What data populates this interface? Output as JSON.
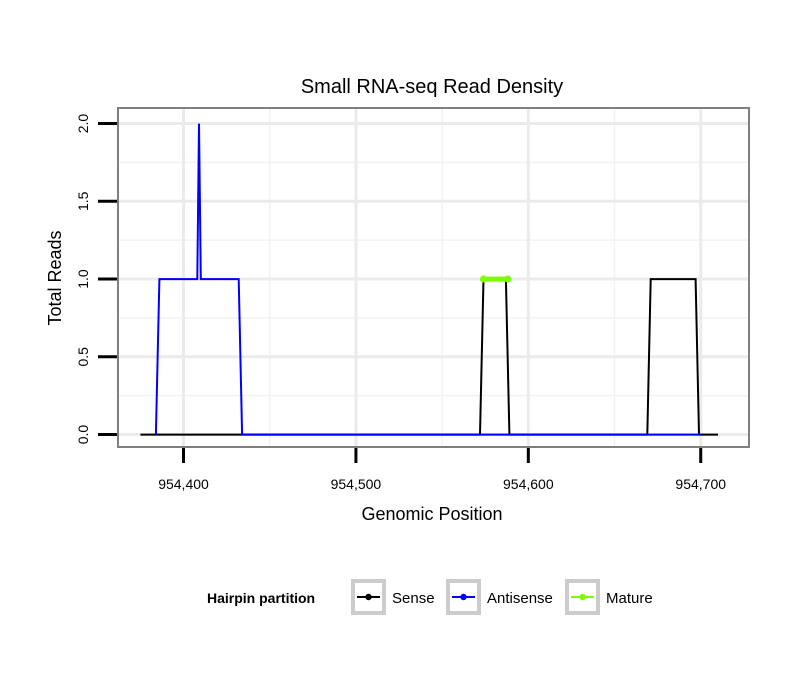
{
  "chart_data": {
    "type": "line",
    "title": "Small RNA-seq Read Density",
    "xlabel": "Genomic Position",
    "ylabel": "Total Reads",
    "xlim": [
      954362,
      954728
    ],
    "ylim": [
      -0.08,
      2.1
    ],
    "x_ticks": [
      954400,
      954500,
      954600,
      954700
    ],
    "x_tick_labels": [
      "954,400",
      "954,500",
      "954,600",
      "954,700"
    ],
    "y_ticks": [
      0,
      0.5,
      1,
      1.5,
      2
    ],
    "y_tick_labels": [
      "0.0",
      "0.5",
      "1.0",
      "1.5",
      "2.0"
    ],
    "x_minor_gridlines": [
      954450,
      954550,
      954650
    ],
    "y_minor_gridlines": [
      0.25,
      0.75,
      1.25,
      1.75
    ],
    "grid": true,
    "legend": {
      "title": "Hairpin partition",
      "position": "bottom",
      "entries": [
        "Sense",
        "Antisense",
        "Mature"
      ]
    },
    "series": [
      {
        "name": "Sense",
        "color": "#000000",
        "kind": "line",
        "points": [
          [
            954375,
            0
          ],
          [
            954572,
            0
          ],
          [
            954574,
            1
          ],
          [
            954587,
            1
          ],
          [
            954589,
            0
          ],
          [
            954669,
            0
          ],
          [
            954671,
            1
          ],
          [
            954697,
            1
          ],
          [
            954699,
            0
          ],
          [
            954710,
            0
          ]
        ]
      },
      {
        "name": "Antisense",
        "color": "#0000ff",
        "kind": "line",
        "points": [
          [
            954384,
            0
          ],
          [
            954386,
            1
          ],
          [
            954408,
            1
          ],
          [
            954409,
            2
          ],
          [
            954410,
            1
          ],
          [
            954432,
            1
          ],
          [
            954434,
            0
          ],
          [
            954480,
            0
          ],
          [
            954700,
            0
          ]
        ]
      },
      {
        "name": "Mature",
        "color": "#7cfc00",
        "kind": "segment",
        "points": [
          [
            954574,
            1
          ],
          [
            954588,
            1
          ]
        ]
      }
    ]
  }
}
